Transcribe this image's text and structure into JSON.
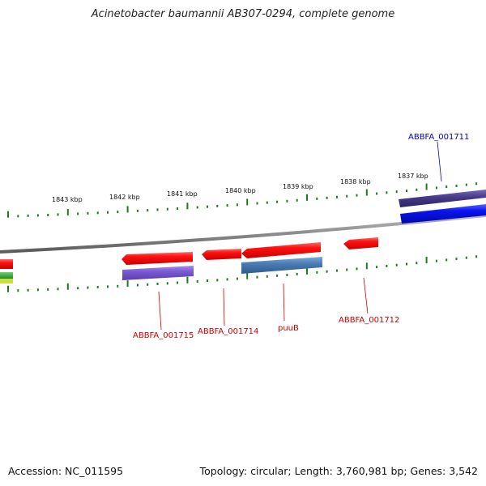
{
  "title": "Acinetobacter baumannii AB307-0294, complete genome",
  "footer": {
    "accession": "Accession: NC_011595",
    "summary": "Topology: circular; Length: 3,760,981 bp; Genes: 3,542"
  },
  "scale_labels": [
    "1843 kbp",
    "1842 kbp",
    "1841 kbp",
    "1840 kbp",
    "1839 kbp",
    "1838 kbp",
    "1837 kbp"
  ],
  "callouts": {
    "abbfa_001711": "ABBFA_001711",
    "abbfa_001715": "ABBFA_001715",
    "abbfa_001714": "ABBFA_001714",
    "puub": "puuB",
    "abbfa_001712": "ABBFA_001712"
  },
  "colors": {
    "backbone": "#8c8c8c",
    "tick": "#1e7a1e",
    "gene_red": "#ff1111",
    "gene_blue": "#0a14f0",
    "gene_darkpurple": "#4a3c8c",
    "gene_lightpurple": "#7a5ad2",
    "gene_steelblue": "#4a7db5",
    "callout_blue": "#0000c8",
    "callout_red": "#cc0000"
  }
}
